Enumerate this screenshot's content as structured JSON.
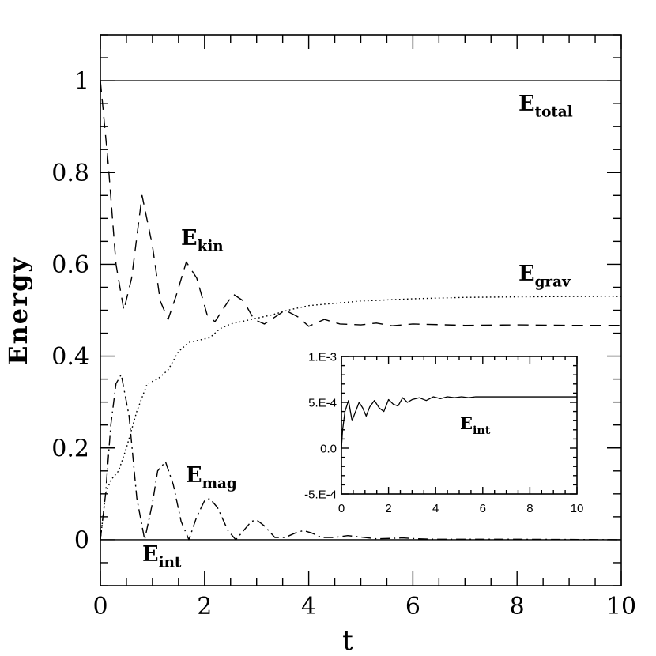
{
  "chart_data": [
    {
      "type": "line",
      "xlabel": "t",
      "ylabel": "Energy",
      "xlim": [
        0,
        10
      ],
      "ylim": [
        -0.1,
        1.1
      ],
      "xticks": [
        0,
        2,
        4,
        6,
        8,
        10
      ],
      "xtick_labels": [
        "0",
        "2",
        "4",
        "6",
        "8",
        "10"
      ],
      "yticks": [
        0,
        0.2,
        0.4,
        0.6,
        0.8,
        1
      ],
      "ytick_labels": [
        "0",
        "0.2",
        "0.4",
        "0.6",
        "0.8",
        "1"
      ],
      "grid": false,
      "annotations": [
        {
          "main": "E",
          "sub": "total"
        },
        {
          "main": "E",
          "sub": "kin"
        },
        {
          "main": "E",
          "sub": "grav"
        },
        {
          "main": "E",
          "sub": "mag"
        },
        {
          "main": "E",
          "sub": "int"
        }
      ],
      "series": [
        {
          "style": "solid",
          "x": [
            0,
            10
          ],
          "y": [
            1.0,
            1.0
          ]
        },
        {
          "style": "dashed",
          "x": [
            0,
            0.15,
            0.3,
            0.45,
            0.6,
            0.8,
            1.0,
            1.15,
            1.3,
            1.45,
            1.65,
            1.85,
            2.05,
            2.2,
            2.4,
            2.55,
            2.75,
            2.95,
            3.15,
            3.35,
            3.55,
            3.8,
            4.0,
            4.3,
            4.6,
            5.0,
            5.3,
            5.6,
            6.0,
            7.0,
            8.0,
            9.0,
            10.0
          ],
          "y": [
            1.0,
            0.82,
            0.6,
            0.5,
            0.57,
            0.75,
            0.64,
            0.52,
            0.48,
            0.53,
            0.605,
            0.57,
            0.49,
            0.475,
            0.51,
            0.535,
            0.52,
            0.48,
            0.47,
            0.485,
            0.5,
            0.485,
            0.465,
            0.48,
            0.47,
            0.468,
            0.472,
            0.466,
            0.47,
            0.467,
            0.468,
            0.467,
            0.467
          ]
        },
        {
          "style": "dotted",
          "x": [
            0,
            0.1,
            0.2,
            0.35,
            0.5,
            0.7,
            0.9,
            1.1,
            1.3,
            1.5,
            1.7,
            1.9,
            2.1,
            2.3,
            2.5,
            2.7,
            2.9,
            3.1,
            3.3,
            3.6,
            4.0,
            4.5,
            5.0,
            6.0,
            7.0,
            8.0,
            9.0,
            10.0
          ],
          "y": [
            0.0,
            0.1,
            0.13,
            0.15,
            0.2,
            0.28,
            0.34,
            0.35,
            0.37,
            0.41,
            0.43,
            0.435,
            0.44,
            0.46,
            0.47,
            0.475,
            0.48,
            0.485,
            0.49,
            0.5,
            0.51,
            0.515,
            0.52,
            0.525,
            0.528,
            0.529,
            0.53,
            0.53
          ]
        },
        {
          "style": "dashdot",
          "x": [
            0,
            0.1,
            0.2,
            0.3,
            0.4,
            0.55,
            0.7,
            0.85,
            1.0,
            1.1,
            1.25,
            1.4,
            1.55,
            1.7,
            1.85,
            2.0,
            2.1,
            2.25,
            2.45,
            2.6,
            2.75,
            2.9,
            3.0,
            3.15,
            3.35,
            3.55,
            3.75,
            3.9,
            4.05,
            4.25,
            4.5,
            4.75,
            5.0,
            5.3,
            5.6,
            5.8,
            6.1,
            6.5,
            7.0,
            8.0,
            10.0
          ],
          "y": [
            0.0,
            0.1,
            0.25,
            0.34,
            0.36,
            0.27,
            0.09,
            0.0,
            0.08,
            0.15,
            0.17,
            0.12,
            0.04,
            0.0,
            0.05,
            0.085,
            0.09,
            0.07,
            0.02,
            0.0,
            0.02,
            0.04,
            0.043,
            0.03,
            0.005,
            0.005,
            0.015,
            0.02,
            0.015,
            0.005,
            0.005,
            0.009,
            0.006,
            0.002,
            0.003,
            0.004,
            0.002,
            0.001,
            0.001,
            0.001,
            0.0
          ]
        },
        {
          "style": "solid",
          "x": [
            0,
            10
          ],
          "y": [
            0.0,
            0.0
          ]
        }
      ]
    },
    {
      "type": "line",
      "inset": true,
      "xlim": [
        0,
        10
      ],
      "ylim": [
        -0.0005,
        0.001
      ],
      "xticks": [
        0,
        2,
        4,
        6,
        8,
        10
      ],
      "xtick_labels": [
        "0",
        "2",
        "4",
        "6",
        "8",
        "10"
      ],
      "yticks": [
        -0.0005,
        0.0,
        0.0005,
        0.001
      ],
      "ytick_labels": [
        "-5.E-4",
        "0.0",
        "5.E-4",
        "1.E-3"
      ],
      "annotations": [
        {
          "main": "E",
          "sub": "int"
        }
      ],
      "series": [
        {
          "style": "solid",
          "x": [
            0,
            0.05,
            0.15,
            0.3,
            0.45,
            0.6,
            0.75,
            0.9,
            1.05,
            1.2,
            1.4,
            1.6,
            1.8,
            2.0,
            2.2,
            2.4,
            2.6,
            2.8,
            3.0,
            3.3,
            3.6,
            3.9,
            4.2,
            4.5,
            4.8,
            5.1,
            5.4,
            5.7,
            6.0,
            7.0,
            8.0,
            9.0,
            10.0
          ],
          "y": [
            0.0,
            0.0002,
            0.0004,
            0.00052,
            0.0003,
            0.0004,
            0.0005,
            0.00044,
            0.00035,
            0.00045,
            0.00052,
            0.00044,
            0.0004,
            0.00053,
            0.00048,
            0.00046,
            0.00055,
            0.0005,
            0.00053,
            0.00055,
            0.00052,
            0.00056,
            0.00054,
            0.00056,
            0.00055,
            0.00056,
            0.00055,
            0.00056,
            0.00056,
            0.00056,
            0.00056,
            0.00056,
            0.00056
          ]
        }
      ]
    }
  ]
}
